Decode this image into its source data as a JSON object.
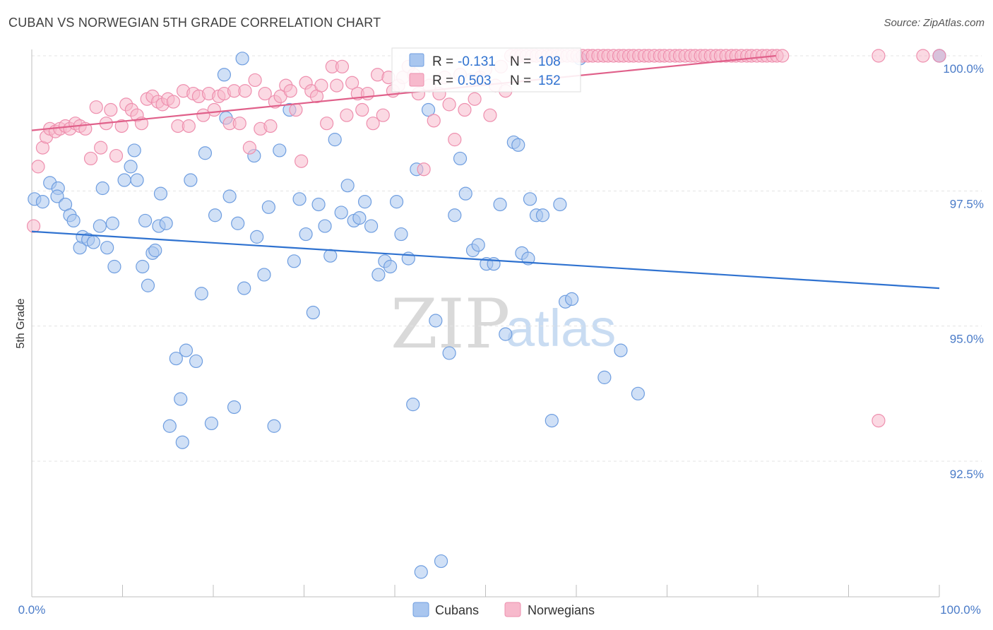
{
  "header": {
    "title": "CUBAN VS NORWEGIAN 5TH GRADE CORRELATION CHART",
    "source": "Source: ZipAtlas.com"
  },
  "watermark": {
    "zip": "ZIP",
    "atlas": "atlas"
  },
  "legend_box": {
    "rows": [
      {
        "r_label": "R =",
        "r_value": "-0.131",
        "n_label": "N =",
        "n_value": "108"
      },
      {
        "r_label": "R =",
        "r_value": "0.503",
        "n_label": "N =",
        "n_value": "152"
      }
    ]
  },
  "bottom_legend": {
    "cubans": "Cubans",
    "norwegians": "Norwegians"
  },
  "chart_data": {
    "type": "scatter",
    "title": "CUBAN VS NORWEGIAN 5TH GRADE CORRELATION CHART",
    "xlabel": "",
    "ylabel": "5th Grade",
    "xlim": [
      0,
      100
    ],
    "ylim": [
      89.8,
      100.35
    ],
    "x_tick_labels": {
      "left": "0.0%",
      "right": "100.0%"
    },
    "y_ticks": [
      {
        "value": 100.0,
        "label": "100.0%"
      },
      {
        "value": 97.5,
        "label": "97.5%"
      },
      {
        "value": 95.0,
        "label": "95.0%"
      },
      {
        "value": 92.5,
        "label": "92.5%"
      }
    ],
    "colors": {
      "cubans_fill": "#a9c6ef",
      "cubans_stroke": "#6f9ee0",
      "cubans_line": "#2f72d0",
      "norwegians_fill": "#f7b9cc",
      "norwegians_stroke": "#ee8fae",
      "norwegians_line": "#e0608a",
      "grid": "#e3e3e3",
      "r_value": "#2f72d0"
    },
    "series": [
      {
        "name": "Cubans",
        "r": -0.131,
        "n": 108,
        "trend": {
          "x": [
            0,
            100
          ],
          "y": [
            96.75,
            95.7
          ]
        },
        "points": [
          [
            0.3,
            97.35
          ],
          [
            1.2,
            97.3
          ],
          [
            2.0,
            97.65
          ],
          [
            2.9,
            97.55
          ],
          [
            2.8,
            97.4
          ],
          [
            3.7,
            97.25
          ],
          [
            4.2,
            97.05
          ],
          [
            4.6,
            96.95
          ],
          [
            5.3,
            96.45
          ],
          [
            5.6,
            96.65
          ],
          [
            6.2,
            96.6
          ],
          [
            6.8,
            96.55
          ],
          [
            7.5,
            96.85
          ],
          [
            7.8,
            97.55
          ],
          [
            8.3,
            96.45
          ],
          [
            8.9,
            96.9
          ],
          [
            9.1,
            96.1
          ],
          [
            10.2,
            97.7
          ],
          [
            10.9,
            97.95
          ],
          [
            11.3,
            98.25
          ],
          [
            11.6,
            97.7
          ],
          [
            12.2,
            96.1
          ],
          [
            12.5,
            96.95
          ],
          [
            12.8,
            95.75
          ],
          [
            13.3,
            96.35
          ],
          [
            13.6,
            96.4
          ],
          [
            14.0,
            96.85
          ],
          [
            14.2,
            97.45
          ],
          [
            14.8,
            96.9
          ],
          [
            15.2,
            93.15
          ],
          [
            15.9,
            94.4
          ],
          [
            16.4,
            93.65
          ],
          [
            16.6,
            92.85
          ],
          [
            17.0,
            94.55
          ],
          [
            17.5,
            97.7
          ],
          [
            18.1,
            94.35
          ],
          [
            18.7,
            95.6
          ],
          [
            19.1,
            98.2
          ],
          [
            19.8,
            93.2
          ],
          [
            20.2,
            97.05
          ],
          [
            21.2,
            99.65
          ],
          [
            21.4,
            98.85
          ],
          [
            21.8,
            97.4
          ],
          [
            22.3,
            93.5
          ],
          [
            22.7,
            96.9
          ],
          [
            23.2,
            99.95
          ],
          [
            23.4,
            95.7
          ],
          [
            24.5,
            98.15
          ],
          [
            24.8,
            96.65
          ],
          [
            25.6,
            95.95
          ],
          [
            26.1,
            97.2
          ],
          [
            26.7,
            93.15
          ],
          [
            27.3,
            98.25
          ],
          [
            28.4,
            99.0
          ],
          [
            28.9,
            96.2
          ],
          [
            29.5,
            97.35
          ],
          [
            30.2,
            96.7
          ],
          [
            31.0,
            95.25
          ],
          [
            31.6,
            97.25
          ],
          [
            32.3,
            96.85
          ],
          [
            32.9,
            96.3
          ],
          [
            33.4,
            98.45
          ],
          [
            34.1,
            97.1
          ],
          [
            34.8,
            97.6
          ],
          [
            35.5,
            96.95
          ],
          [
            36.1,
            97.0
          ],
          [
            36.7,
            97.3
          ],
          [
            37.4,
            96.85
          ],
          [
            38.2,
            95.95
          ],
          [
            38.9,
            96.2
          ],
          [
            39.5,
            96.1
          ],
          [
            40.2,
            97.3
          ],
          [
            40.7,
            96.7
          ],
          [
            41.5,
            96.25
          ],
          [
            42.0,
            93.55
          ],
          [
            42.4,
            97.9
          ],
          [
            42.9,
            90.45
          ],
          [
            43.7,
            99.0
          ],
          [
            44.5,
            95.1
          ],
          [
            45.1,
            90.65
          ],
          [
            46.0,
            94.5
          ],
          [
            46.6,
            97.05
          ],
          [
            47.2,
            98.1
          ],
          [
            47.8,
            97.45
          ],
          [
            48.6,
            96.4
          ],
          [
            49.2,
            96.5
          ],
          [
            50.1,
            96.15
          ],
          [
            50.9,
            96.15
          ],
          [
            51.6,
            97.25
          ],
          [
            52.2,
            94.85
          ],
          [
            53.1,
            98.4
          ],
          [
            53.6,
            98.35
          ],
          [
            54.0,
            96.35
          ],
          [
            54.7,
            96.25
          ],
          [
            54.9,
            97.35
          ],
          [
            55.6,
            97.05
          ],
          [
            56.3,
            97.05
          ],
          [
            57.3,
            93.25
          ],
          [
            58.2,
            97.25
          ],
          [
            58.8,
            95.45
          ],
          [
            59.5,
            95.5
          ],
          [
            60.4,
            99.95
          ],
          [
            63.1,
            94.05
          ],
          [
            64.9,
            94.55
          ],
          [
            66.8,
            93.75
          ],
          [
            100.0,
            100.0
          ],
          [
            100.0,
            100.0
          ],
          [
            100.0,
            100.0
          ]
        ]
      },
      {
        "name": "Norwegians",
        "r": 0.503,
        "n": 152,
        "trend": {
          "x": [
            0,
            82
          ],
          "y": [
            98.62,
            100.0
          ]
        },
        "points": [
          [
            0.2,
            96.85
          ],
          [
            0.7,
            97.95
          ],
          [
            1.2,
            98.3
          ],
          [
            1.6,
            98.5
          ],
          [
            2.0,
            98.65
          ],
          [
            2.6,
            98.6
          ],
          [
            3.1,
            98.65
          ],
          [
            3.7,
            98.7
          ],
          [
            4.2,
            98.65
          ],
          [
            4.8,
            98.75
          ],
          [
            5.3,
            98.7
          ],
          [
            5.9,
            98.65
          ],
          [
            6.5,
            98.1
          ],
          [
            7.1,
            99.05
          ],
          [
            7.6,
            98.3
          ],
          [
            8.2,
            98.75
          ],
          [
            8.7,
            99.0
          ],
          [
            9.3,
            98.15
          ],
          [
            9.9,
            98.7
          ],
          [
            10.4,
            99.1
          ],
          [
            11.0,
            99.0
          ],
          [
            11.6,
            98.9
          ],
          [
            12.1,
            98.75
          ],
          [
            12.7,
            99.2
          ],
          [
            13.3,
            99.25
          ],
          [
            13.9,
            99.15
          ],
          [
            14.4,
            99.1
          ],
          [
            15.0,
            99.2
          ],
          [
            15.6,
            99.15
          ],
          [
            16.1,
            98.7
          ],
          [
            16.7,
            99.35
          ],
          [
            17.3,
            98.7
          ],
          [
            17.8,
            99.3
          ],
          [
            18.4,
            99.25
          ],
          [
            18.9,
            98.9
          ],
          [
            19.5,
            99.3
          ],
          [
            20.1,
            99.0
          ],
          [
            20.6,
            99.25
          ],
          [
            21.2,
            99.3
          ],
          [
            21.8,
            98.75
          ],
          [
            22.3,
            99.35
          ],
          [
            22.9,
            98.75
          ],
          [
            23.5,
            99.35
          ],
          [
            24.0,
            98.3
          ],
          [
            24.6,
            99.55
          ],
          [
            25.2,
            98.65
          ],
          [
            25.7,
            99.3
          ],
          [
            26.3,
            98.7
          ],
          [
            26.8,
            99.15
          ],
          [
            27.4,
            99.25
          ],
          [
            28.0,
            99.45
          ],
          [
            28.5,
            99.35
          ],
          [
            29.1,
            99.0
          ],
          [
            29.7,
            98.05
          ],
          [
            30.2,
            99.5
          ],
          [
            30.8,
            99.35
          ],
          [
            31.4,
            99.25
          ],
          [
            31.9,
            99.45
          ],
          [
            32.5,
            98.75
          ],
          [
            33.1,
            99.8
          ],
          [
            33.6,
            99.45
          ],
          [
            34.2,
            99.8
          ],
          [
            34.7,
            98.9
          ],
          [
            35.3,
            99.5
          ],
          [
            35.9,
            99.3
          ],
          [
            36.4,
            99.0
          ],
          [
            37.0,
            99.3
          ],
          [
            37.6,
            98.75
          ],
          [
            38.1,
            99.65
          ],
          [
            38.7,
            98.9
          ],
          [
            39.3,
            99.6
          ],
          [
            39.8,
            99.35
          ],
          [
            40.4,
            99.45
          ],
          [
            40.9,
            99.6
          ],
          [
            41.5,
            99.8
          ],
          [
            42.1,
            99.65
          ],
          [
            42.6,
            99.3
          ],
          [
            43.2,
            97.9
          ],
          [
            43.8,
            99.45
          ],
          [
            44.3,
            98.8
          ],
          [
            44.9,
            99.3
          ],
          [
            45.5,
            99.6
          ],
          [
            46.0,
            99.1
          ],
          [
            46.6,
            98.45
          ],
          [
            47.2,
            99.65
          ],
          [
            47.7,
            99.0
          ],
          [
            48.3,
            99.55
          ],
          [
            48.8,
            99.2
          ],
          [
            49.4,
            99.6
          ],
          [
            50.0,
            99.75
          ],
          [
            50.5,
            98.9
          ],
          [
            51.1,
            99.45
          ],
          [
            51.7,
            99.8
          ],
          [
            52.2,
            99.35
          ],
          [
            52.8,
            100.0
          ],
          [
            53.4,
            100.0
          ],
          [
            53.9,
            100.0
          ],
          [
            54.5,
            100.0
          ],
          [
            55.1,
            100.0
          ],
          [
            55.6,
            100.0
          ],
          [
            56.2,
            100.0
          ],
          [
            56.8,
            100.0
          ],
          [
            57.3,
            100.0
          ],
          [
            57.9,
            100.0
          ],
          [
            58.4,
            100.0
          ],
          [
            59.0,
            100.0
          ],
          [
            59.6,
            100.0
          ],
          [
            60.1,
            100.0
          ],
          [
            60.7,
            100.0
          ],
          [
            61.3,
            100.0
          ],
          [
            61.8,
            100.0
          ],
          [
            62.4,
            100.0
          ],
          [
            63.0,
            100.0
          ],
          [
            63.5,
            100.0
          ],
          [
            64.1,
            100.0
          ],
          [
            64.7,
            100.0
          ],
          [
            65.2,
            100.0
          ],
          [
            65.8,
            100.0
          ],
          [
            66.3,
            100.0
          ],
          [
            66.9,
            100.0
          ],
          [
            67.5,
            100.0
          ],
          [
            68.0,
            100.0
          ],
          [
            68.6,
            100.0
          ],
          [
            69.2,
            100.0
          ],
          [
            69.7,
            100.0
          ],
          [
            70.3,
            100.0
          ],
          [
            70.9,
            100.0
          ],
          [
            71.4,
            100.0
          ],
          [
            72.0,
            100.0
          ],
          [
            72.6,
            100.0
          ],
          [
            73.1,
            100.0
          ],
          [
            73.7,
            100.0
          ],
          [
            74.2,
            100.0
          ],
          [
            74.8,
            100.0
          ],
          [
            75.4,
            100.0
          ],
          [
            75.9,
            100.0
          ],
          [
            76.5,
            100.0
          ],
          [
            77.1,
            100.0
          ],
          [
            77.6,
            100.0
          ],
          [
            78.2,
            100.0
          ],
          [
            78.8,
            100.0
          ],
          [
            79.3,
            100.0
          ],
          [
            79.9,
            100.0
          ],
          [
            80.5,
            100.0
          ],
          [
            81.0,
            100.0
          ],
          [
            81.6,
            100.0
          ],
          [
            82.1,
            100.0
          ],
          [
            82.7,
            100.0
          ],
          [
            93.3,
            100.0
          ],
          [
            93.3,
            93.25
          ],
          [
            98.2,
            100.0
          ],
          [
            100.0,
            100.0
          ]
        ]
      }
    ]
  }
}
